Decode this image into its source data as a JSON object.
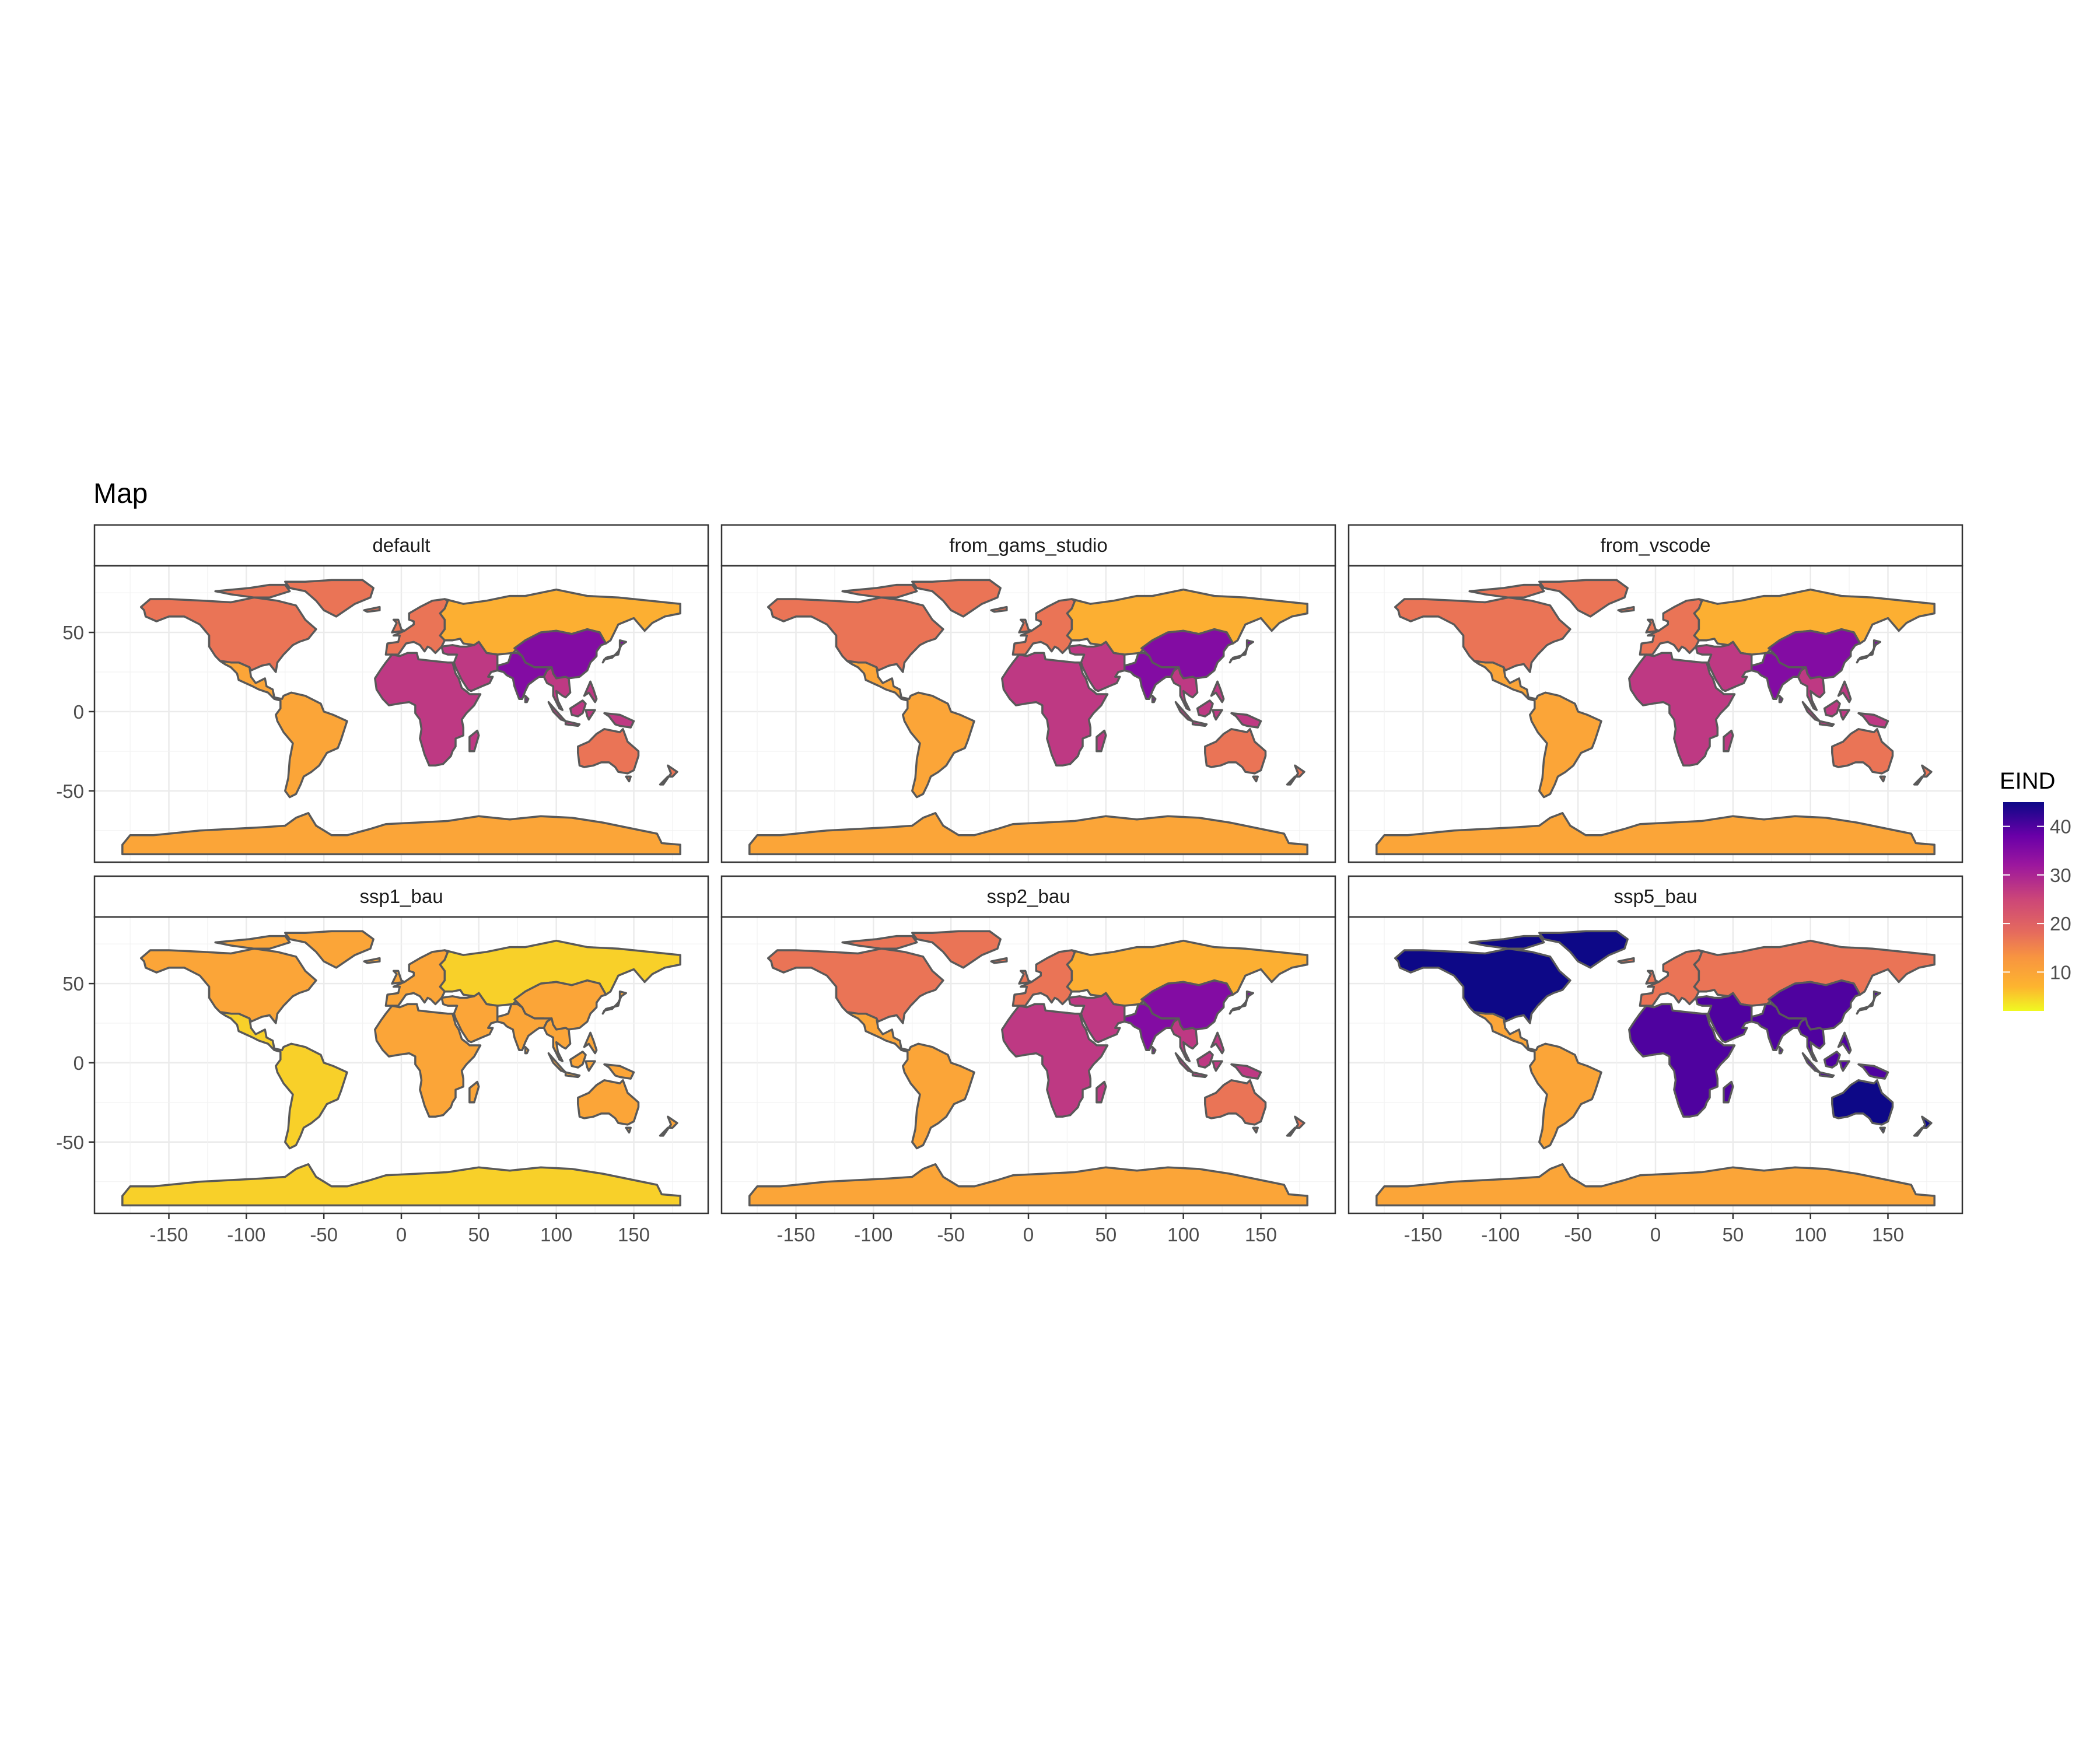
{
  "title": "Map",
  "legend": {
    "title": "EIND",
    "ticks": [
      10,
      20,
      30,
      40
    ],
    "range": [
      2,
      45
    ]
  },
  "colors": {
    "c5": "#F0F921",
    "c10": "#FDB42F",
    "c17": "#F0804D",
    "c27": "#CC4678",
    "c35": "#9C179E",
    "c45": "#0D0887",
    "border": "#595959",
    "grid": "#EBEBEB",
    "panel_border": "#333333",
    "tick_text": "#4D4D4D"
  },
  "axes": {
    "x_ticks": [
      -150,
      -100,
      -50,
      0,
      50,
      100,
      150
    ],
    "y_ticks": [
      50,
      0,
      -50
    ],
    "xlim": [
      -198,
      198
    ],
    "ylim": [
      -95,
      92
    ]
  },
  "chart_data": {
    "type": "choropleth",
    "facet_label_note": "panels are faceted by scenario",
    "regions": [
      "north_america",
      "latin_america",
      "europe",
      "russia_central_asia",
      "china_east_asia",
      "south_asia",
      "middle_east",
      "africa",
      "southeast_asia",
      "oceania",
      "antarctica"
    ],
    "scenarios": [
      {
        "name": "default",
        "values": {
          "north_america": 17,
          "latin_america": 10,
          "europe": 17,
          "russia_central_asia": 8,
          "china_east_asia": 35,
          "south_asia": 35,
          "middle_east": 27,
          "africa": 27,
          "southeast_asia": 27,
          "oceania": 17,
          "antarctica": 10
        }
      },
      {
        "name": "from_gams_studio",
        "values": {
          "north_america": 17,
          "latin_america": 10,
          "europe": 17,
          "russia_central_asia": 8,
          "china_east_asia": 35,
          "south_asia": 35,
          "middle_east": 27,
          "africa": 27,
          "southeast_asia": 27,
          "oceania": 17,
          "antarctica": 10
        }
      },
      {
        "name": "from_vscode",
        "values": {
          "north_america": 17,
          "latin_america": 10,
          "europe": 17,
          "russia_central_asia": 8,
          "china_east_asia": 35,
          "south_asia": 35,
          "middle_east": 27,
          "africa": 27,
          "southeast_asia": 27,
          "oceania": 17,
          "antarctica": 10
        }
      },
      {
        "name": "ssp1_bau",
        "values": {
          "north_america": 10,
          "latin_america": 5,
          "europe": 10,
          "russia_central_asia": 5,
          "china_east_asia": 10,
          "south_asia": 10,
          "middle_east": 10,
          "africa": 10,
          "southeast_asia": 10,
          "oceania": 10,
          "antarctica": 5
        }
      },
      {
        "name": "ssp2_bau",
        "values": {
          "north_america": 17,
          "latin_america": 10,
          "europe": 17,
          "russia_central_asia": 8,
          "china_east_asia": 35,
          "south_asia": 35,
          "middle_east": 27,
          "africa": 27,
          "southeast_asia": 27,
          "oceania": 17,
          "antarctica": 10
        }
      },
      {
        "name": "ssp5_bau",
        "values": {
          "north_america": 45,
          "latin_america": 10,
          "europe": 17,
          "russia_central_asia": 17,
          "china_east_asia": 40,
          "south_asia": 40,
          "middle_east": 40,
          "africa": 40,
          "southeast_asia": 40,
          "oceania": 45,
          "antarctica": 10
        }
      }
    ]
  }
}
